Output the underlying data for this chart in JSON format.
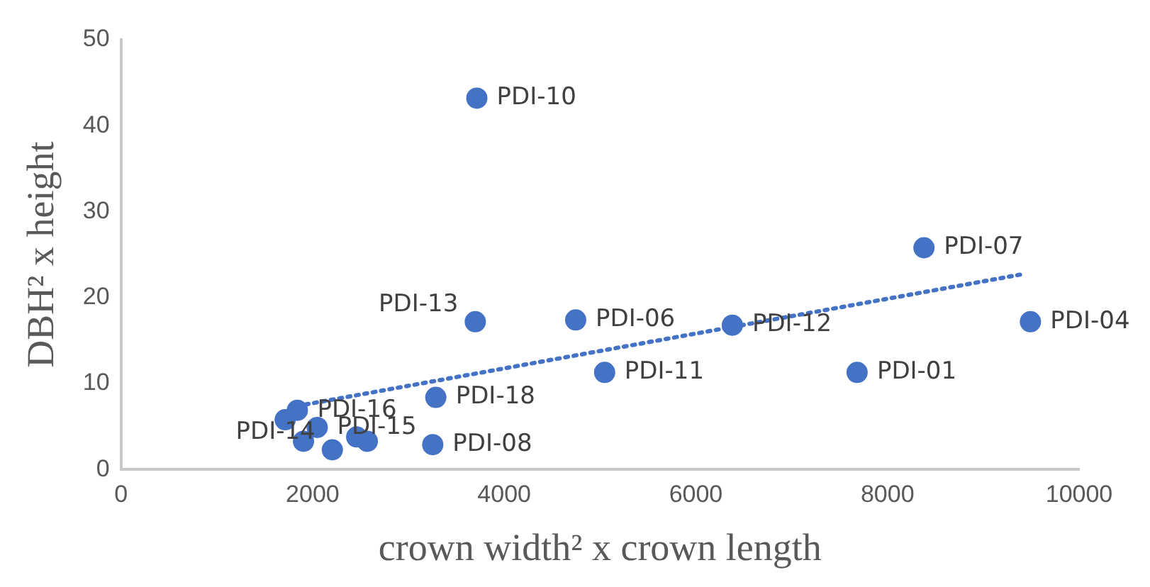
{
  "chart_data": {
    "type": "scatter",
    "xlabel": "crown width² x crown length",
    "ylabel": "DBH² x height",
    "xlim": [
      0,
      10000
    ],
    "xticks": [
      0,
      2000,
      4000,
      6000,
      8000,
      10000
    ],
    "ylim": [
      0,
      50
    ],
    "yticks": [
      0,
      10,
      20,
      30,
      40,
      50
    ],
    "grid": false,
    "legend": false,
    "marker": "circle",
    "series": [
      {
        "color": "#4472c4",
        "x": [
          3714,
          8381,
          9492,
          3698,
          4746,
          6381,
          5048,
          7683,
          3286,
          1714,
          1841,
          1905,
          2048,
          2206,
          2460,
          2571,
          3254
        ],
        "values": [
          43.2,
          25.8,
          17.2,
          17.2,
          17.4,
          16.8,
          11.3,
          11.3,
          8.4,
          5.8,
          6.9,
          3.3,
          4.9,
          2.3,
          3.8,
          3.3,
          2.9
        ]
      },
      {
        "type": "line",
        "color": "#4472c4",
        "line_style": "dotted",
        "marker": "none",
        "x": [
          1841,
          9397
        ],
        "values": [
          7.4,
          22.7
        ]
      }
    ],
    "annotations": [
      {
        "text": "PDI-10",
        "x": 3714,
        "y": 43.2
      },
      {
        "text": "PDI-07",
        "x": 8381,
        "y": 25.8
      },
      {
        "text": "PDI-04",
        "x": 9492,
        "y": 17.2
      },
      {
        "text": "PDI-13",
        "x": 3698,
        "y": 17.2
      },
      {
        "text": "PDI-06",
        "x": 4746,
        "y": 17.4
      },
      {
        "text": "PDI-12",
        "x": 6381,
        "y": 16.8
      },
      {
        "text": "PDI-11",
        "x": 5048,
        "y": 11.3
      },
      {
        "text": "PDI-01",
        "x": 7683,
        "y": 11.3
      },
      {
        "text": "PDI-18",
        "x": 3286,
        "y": 8.4
      },
      {
        "text": "PDI-16",
        "x": 1841,
        "y": 6.9
      },
      {
        "text": "PDI-15",
        "x": 2048,
        "y": 4.9
      },
      {
        "text": "PDI-14",
        "x": 2206,
        "y": 2.3
      },
      {
        "text": "PDI-08",
        "x": 3254,
        "y": 2.9
      }
    ]
  }
}
